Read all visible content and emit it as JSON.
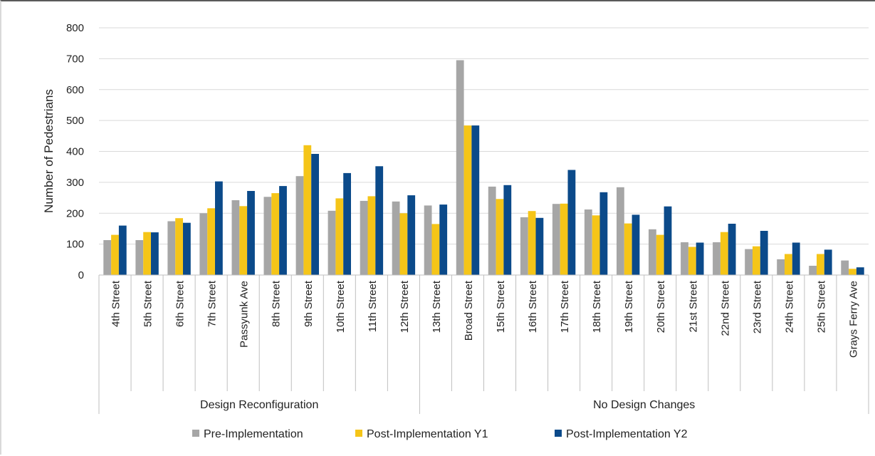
{
  "chart_data": {
    "type": "bar",
    "title": "",
    "xlabel": "",
    "ylabel": "Number of Pedestrians",
    "ylim": [
      0,
      800
    ],
    "yticks": [
      0,
      100,
      200,
      300,
      400,
      500,
      600,
      700,
      800
    ],
    "grid": true,
    "legend_position": "bottom",
    "groups": [
      {
        "label": "Design Reconfiguration",
        "count": 10
      },
      {
        "label": "No Design Changes",
        "count": 14
      }
    ],
    "categories": [
      "4th Street",
      "5th Street",
      "6th Street",
      "7th Street",
      "Passyunk Ave",
      "8th Street",
      "9th Street",
      "10th Street",
      "11th Street",
      "12th Street",
      "13th Street",
      "Broad Street",
      "15th Street",
      "16th Street",
      "17th Street",
      "18th Street",
      "19th Street",
      "20th Street",
      "21st Street",
      "22nd Street",
      "23rd Street",
      "24th Street",
      "25th Street",
      "Grays Ferry Ave"
    ],
    "series": [
      {
        "name": "Pre-Implementation",
        "color": "#a6a6a6",
        "values": [
          113,
          113,
          174,
          200,
          242,
          253,
          320,
          208,
          240,
          238,
          225,
          695,
          286,
          187,
          230,
          212,
          284,
          148,
          106,
          106,
          84,
          51,
          30,
          47
        ]
      },
      {
        "name": "Post-Implementation Y1",
        "color": "#f5c518",
        "values": [
          130,
          139,
          184,
          216,
          223,
          265,
          420,
          248,
          255,
          200,
          165,
          484,
          246,
          207,
          231,
          193,
          167,
          130,
          91,
          139,
          93,
          68,
          68,
          20
        ]
      },
      {
        "name": "Post-Implementation Y2",
        "color": "#0b4a8a",
        "values": [
          160,
          138,
          169,
          303,
          272,
          288,
          392,
          330,
          352,
          258,
          228,
          484,
          291,
          185,
          340,
          268,
          195,
          222,
          105,
          166,
          143,
          105,
          82,
          25
        ]
      }
    ]
  }
}
